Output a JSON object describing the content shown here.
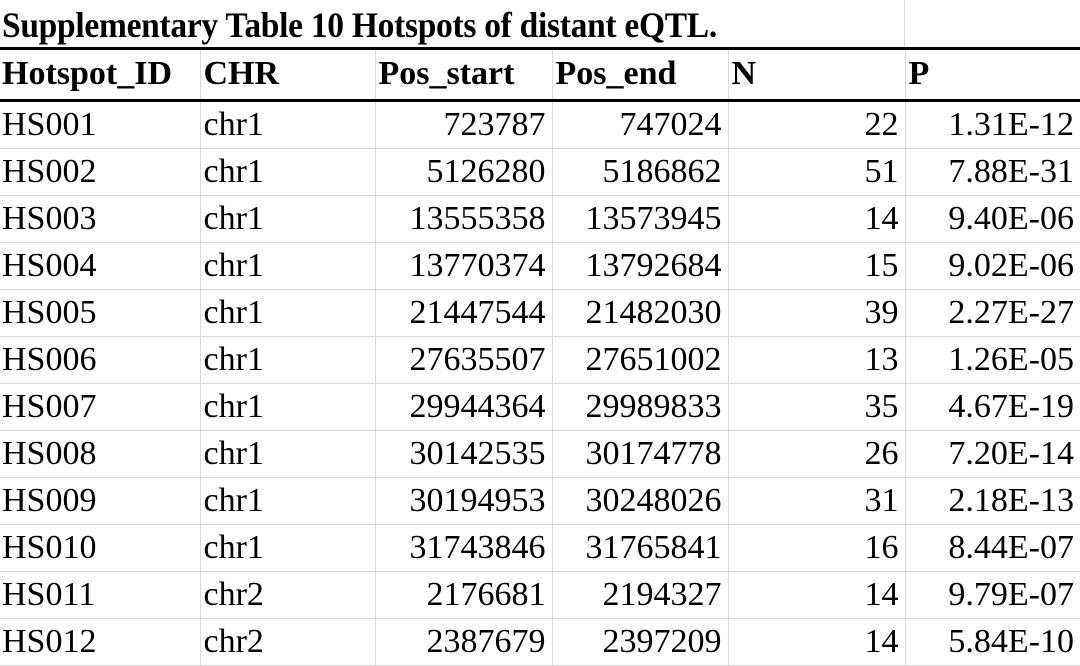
{
  "title": "Supplementary Table 10 Hotspots of distant eQTL.",
  "columns": [
    "Hotspot_ID",
    "CHR",
    "Pos_start",
    "Pos_end",
    "N",
    "P"
  ],
  "rows": [
    [
      "HS001",
      "chr1",
      "723787",
      "747024",
      "22",
      "1.31E-12"
    ],
    [
      "HS002",
      "chr1",
      "5126280",
      "5186862",
      "51",
      "7.88E-31"
    ],
    [
      "HS003",
      "chr1",
      "13555358",
      "13573945",
      "14",
      "9.40E-06"
    ],
    [
      "HS004",
      "chr1",
      "13770374",
      "13792684",
      "15",
      "9.02E-06"
    ],
    [
      "HS005",
      "chr1",
      "21447544",
      "21482030",
      "39",
      "2.27E-27"
    ],
    [
      "HS006",
      "chr1",
      "27635507",
      "27651002",
      "13",
      "1.26E-05"
    ],
    [
      "HS007",
      "chr1",
      "29944364",
      "29989833",
      "35",
      "4.67E-19"
    ],
    [
      "HS008",
      "chr1",
      "30142535",
      "30174778",
      "26",
      "7.20E-14"
    ],
    [
      "HS009",
      "chr1",
      "30194953",
      "30248026",
      "31",
      "2.18E-13"
    ],
    [
      "HS010",
      "chr1",
      "31743846",
      "31765841",
      "16",
      "8.44E-07"
    ],
    [
      "HS011",
      "chr2",
      "2176681",
      "2194327",
      "14",
      "9.79E-07"
    ],
    [
      "HS012",
      "chr2",
      "2387679",
      "2397209",
      "14",
      "5.84E-10"
    ]
  ]
}
